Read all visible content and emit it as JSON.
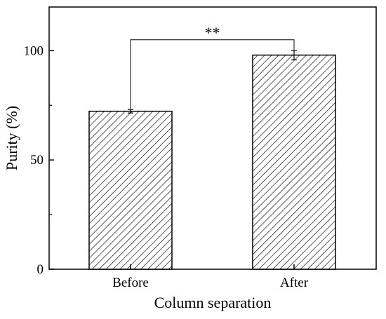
{
  "chart_data": {
    "type": "bar",
    "categories": [
      "Before",
      "After"
    ],
    "values": [
      72.3,
      98
    ],
    "errors": [
      0.8,
      2.2
    ],
    "xlabel": "Column separation",
    "ylabel": "Purity (%)",
    "ylim": [
      0,
      120
    ],
    "yticks": [
      0,
      50,
      100
    ],
    "yticklabels": [
      "0",
      "50",
      "100"
    ],
    "grid": false,
    "bar_fill": "diagonal-hatch",
    "annotations": [
      {
        "type": "significance-bracket",
        "from": "Before",
        "to": "After",
        "label": "**",
        "y": 105
      }
    ]
  }
}
